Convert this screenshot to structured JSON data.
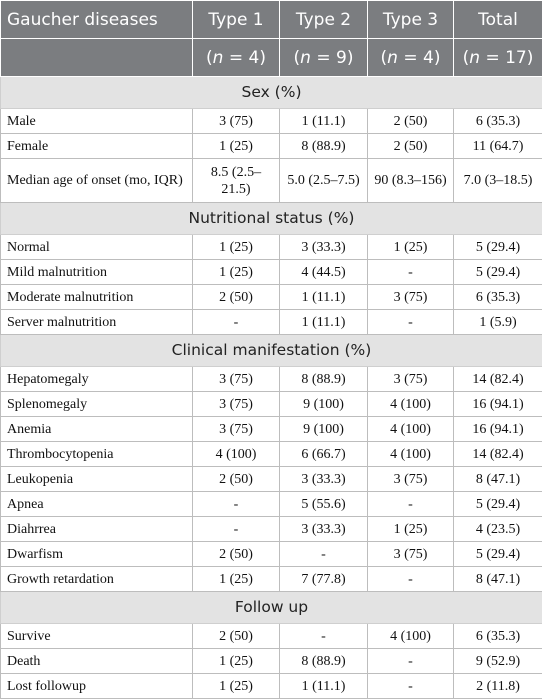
{
  "header": {
    "row1": [
      "Gaucher diseases",
      "Type 1",
      "Type 2",
      "Type 3",
      "Total"
    ],
    "row2": [
      {
        "n": "n",
        "eq": " = 4)"
      },
      {
        "n": "n",
        "eq": " = 9)"
      },
      {
        "n": "n",
        "eq": " = 4)"
      },
      {
        "n": "n",
        "eq": " = 17)"
      }
    ]
  },
  "sections": [
    {
      "title": "Sex (%)",
      "rows": [
        {
          "label": "Male",
          "cells": [
            "3 (75)",
            "1 (11.1)",
            "2 (50)",
            "6 (35.3)"
          ]
        },
        {
          "label": "Female",
          "cells": [
            "1 (25)",
            "8 (88.9)",
            "2 (50)",
            "11 (64.7)"
          ]
        },
        {
          "label": "Median age of onset (mo, IQR)",
          "cells": [
            "8.5 (2.5–21.5)",
            "5.0 (2.5–7.5)",
            "90 (8.3–156)",
            "7.0 (3–18.5)"
          ],
          "tall": true
        }
      ]
    },
    {
      "title": "Nutritional status (%)",
      "rows": [
        {
          "label": "Normal",
          "cells": [
            "1 (25)",
            "3 (33.3)",
            "1 (25)",
            "5 (29.4)"
          ]
        },
        {
          "label": "Mild malnutrition",
          "cells": [
            "1 (25)",
            "4 (44.5)",
            "-",
            "5 (29.4)"
          ]
        },
        {
          "label": "Moderate malnutrition",
          "cells": [
            "2 (50)",
            "1 (11.1)",
            "3 (75)",
            "6 (35.3)"
          ]
        },
        {
          "label": "Server malnutrition",
          "cells": [
            "-",
            "1 (11.1)",
            "-",
            "1 (5.9)"
          ]
        }
      ]
    },
    {
      "title": "Clinical manifestation (%)",
      "rows": [
        {
          "label": "Hepatomegaly",
          "cells": [
            "3 (75)",
            "8 (88.9)",
            "3 (75)",
            "14 (82.4)"
          ]
        },
        {
          "label": "Splenomegaly",
          "cells": [
            "3 (75)",
            "9 (100)",
            "4 (100)",
            "16 (94.1)"
          ]
        },
        {
          "label": "Anemia",
          "cells": [
            "3 (75)",
            "9 (100)",
            "4 (100)",
            "16 (94.1)"
          ]
        },
        {
          "label": "Thrombocytopenia",
          "cells": [
            "4 (100)",
            "6 (66.7)",
            "4 (100)",
            "14 (82.4)"
          ]
        },
        {
          "label": "Leukopenia",
          "cells": [
            "2 (50)",
            "3 (33.3)",
            "3 (75)",
            "8 (47.1)"
          ]
        },
        {
          "label": "Apnea",
          "cells": [
            "-",
            "5 (55.6)",
            "-",
            "5 (29.4)"
          ]
        },
        {
          "label": "Diahrrea",
          "cells": [
            "-",
            "3 (33.3)",
            "1 (25)",
            "4 (23.5)"
          ]
        },
        {
          "label": "Dwarfism",
          "cells": [
            "2 (50)",
            "-",
            "3 (75)",
            "5 (29.4)"
          ]
        },
        {
          "label": "Growth retardation",
          "cells": [
            "1 (25)",
            "7 (77.8)",
            "-",
            "8 (47.1)"
          ]
        }
      ]
    },
    {
      "title": "Follow up",
      "rows": [
        {
          "label": "Survive",
          "cells": [
            "2 (50)",
            "-",
            "4 (100)",
            "6 (35.3)"
          ]
        },
        {
          "label": "Death",
          "cells": [
            "1 (25)",
            "8 (88.9)",
            "-",
            "9 (52.9)"
          ]
        },
        {
          "label": "Lost followup",
          "cells": [
            "1 (25)",
            "1 (11.1)",
            "-",
            "2 (11.8)"
          ]
        }
      ]
    }
  ]
}
